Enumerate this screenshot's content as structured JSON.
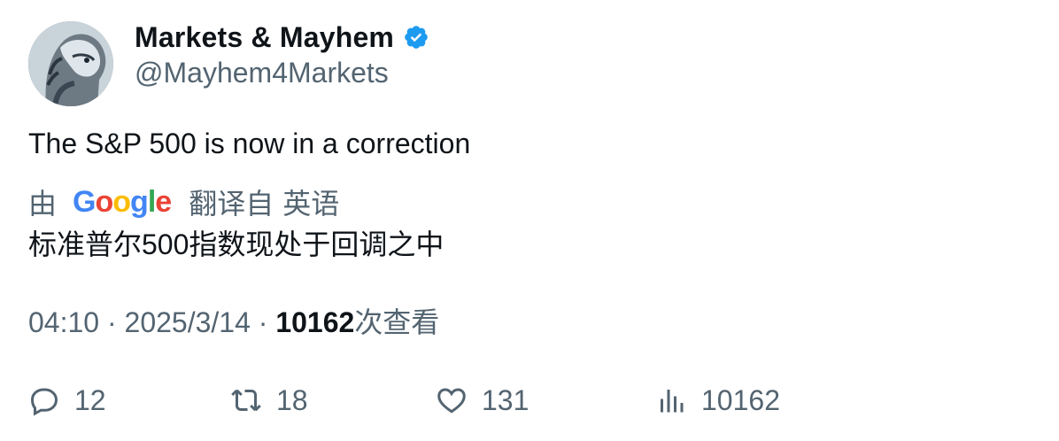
{
  "author": {
    "display_name": "Markets & Mayhem",
    "handle": "@Mayhem4Markets",
    "verified_color": "#1d9bf0"
  },
  "tweet": {
    "text": "The S&P 500 is now in a correction"
  },
  "translation": {
    "by_label": "由",
    "provider_logo_text": [
      "G",
      "o",
      "o",
      "g",
      "l",
      "e"
    ],
    "from_label": "翻译自",
    "language": "英语",
    "translated_text": "标准普尔500指数现处于回调之中"
  },
  "meta": {
    "time": "04:10",
    "separator": "·",
    "date": "2025/3/14",
    "views_count": "10162",
    "views_label": "次查看"
  },
  "actions": {
    "reply_count": "12",
    "retweet_count": "18",
    "like_count": "131",
    "views_count": "10162"
  },
  "icons": {
    "reply": "reply-icon",
    "retweet": "retweet-icon",
    "like": "heart-icon",
    "views": "analytics-icon",
    "verified": "verified-badge-icon"
  }
}
